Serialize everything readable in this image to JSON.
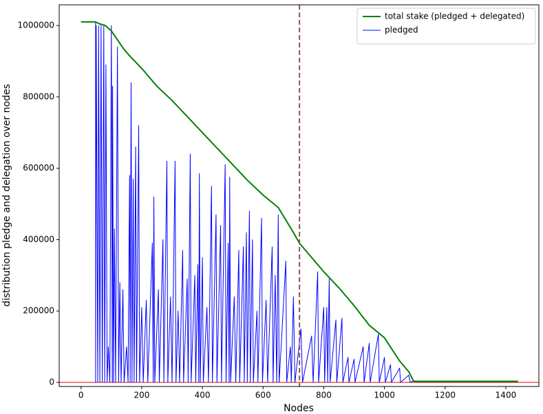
{
  "chart_data": {
    "type": "line",
    "xlabel": "Nodes",
    "ylabel": "distribution pledge and delegation over nodes",
    "xlim": [
      -72,
      1509
    ],
    "ylim": [
      -11500,
      1058000
    ],
    "xticks": [
      0,
      200,
      400,
      600,
      800,
      1000,
      1200,
      1400
    ],
    "yticks": [
      0,
      200000,
      400000,
      600000,
      800000,
      1000000
    ],
    "legend": "upper-right",
    "vlines": [
      {
        "x": 720,
        "color": "#8c564b",
        "style": "dashed"
      }
    ],
    "hlines": [
      {
        "y": 0,
        "color": "#e00000",
        "style": "solid"
      }
    ],
    "series": [
      {
        "name": "total stake (pledged + delegated)",
        "color": "#008000",
        "width": 2,
        "x": [
          0,
          48,
          60,
          80,
          100,
          120,
          140,
          160,
          200,
          250,
          300,
          350,
          400,
          450,
          500,
          550,
          600,
          650,
          700,
          720,
          750,
          800,
          850,
          900,
          950,
          1000,
          1050,
          1080,
          1095,
          1100,
          1440
        ],
        "values": [
          1010000,
          1010000,
          1005000,
          1000000,
          985000,
          960000,
          935000,
          915000,
          880000,
          830000,
          790000,
          745000,
          700000,
          655000,
          610000,
          565000,
          525000,
          490000,
          420000,
          390000,
          360000,
          310000,
          265000,
          215000,
          160000,
          125000,
          60000,
          30000,
          5000,
          3000,
          3000
        ]
      },
      {
        "name": "pledged",
        "color": "#0000ff",
        "width": 1,
        "x": [
          0,
          48,
          48,
          50,
          55,
          58,
          62,
          66,
          70,
          75,
          78,
          82,
          86,
          90,
          95,
          100,
          103,
          104,
          107,
          110,
          114,
          120,
          124,
          128,
          132,
          138,
          142,
          150,
          155,
          160,
          162,
          165,
          168,
          172,
          175,
          180,
          183,
          190,
          193,
          200,
          205,
          215,
          220,
          235,
          238,
          240,
          243,
          255,
          258,
          270,
          273,
          283,
          286,
          295,
          300,
          310,
          313,
          320,
          325,
          335,
          338,
          350,
          353,
          360,
          363,
          375,
          378,
          385,
          388,
          390,
          393,
          400,
          403,
          415,
          420,
          430,
          433,
          445,
          448,
          460,
          463,
          475,
          478,
          485,
          488,
          490,
          493,
          505,
          510,
          520,
          523,
          535,
          538,
          545,
          548,
          555,
          558,
          565,
          568,
          580,
          583,
          595,
          598,
          610,
          615,
          630,
          633,
          640,
          645,
          650,
          653,
          675,
          678,
          690,
          693,
          700,
          705,
          725,
          730,
          760,
          765,
          780,
          783,
          800,
          803,
          810,
          813,
          818,
          821,
          840,
          843,
          860,
          863,
          880,
          883,
          900,
          903,
          930,
          933,
          950,
          953,
          980,
          983,
          1000,
          1003,
          1020,
          1023,
          1050,
          1053,
          1080,
          1085,
          1095,
          1440
        ],
        "values": [
          1010000,
          1010000,
          0,
          1000000,
          0,
          1000000,
          0,
          1000000,
          0,
          1000000,
          0,
          890000,
          0,
          100000,
          0,
          1000000,
          0,
          830000,
          0,
          430000,
          0,
          940000,
          0,
          280000,
          0,
          260000,
          0,
          100000,
          0,
          580000,
          0,
          840000,
          0,
          570000,
          0,
          660000,
          0,
          720000,
          0,
          210000,
          0,
          230000,
          0,
          390000,
          0,
          520000,
          0,
          260000,
          0,
          400000,
          0,
          620000,
          0,
          240000,
          0,
          620000,
          0,
          200000,
          0,
          370000,
          0,
          290000,
          0,
          640000,
          0,
          300000,
          0,
          330000,
          0,
          585000,
          0,
          350000,
          0,
          210000,
          0,
          550000,
          0,
          470000,
          0,
          440000,
          0,
          610000,
          0,
          390000,
          0,
          575000,
          0,
          240000,
          0,
          370000,
          0,
          380000,
          0,
          420000,
          0,
          480000,
          0,
          400000,
          0,
          200000,
          0,
          460000,
          0,
          230000,
          0,
          380000,
          0,
          300000,
          0,
          470000,
          0,
          340000,
          0,
          100000,
          0,
          240000,
          0,
          150000,
          0,
          130000,
          0,
          310000,
          0,
          210000,
          0,
          210000,
          0,
          290000,
          0,
          175000,
          0,
          180000,
          0,
          70000,
          0,
          65000,
          0,
          100000,
          0,
          110000,
          0,
          135000,
          0,
          70000,
          0,
          50000,
          0,
          40000,
          0,
          20000,
          0,
          3000,
          3000
        ]
      }
    ]
  }
}
